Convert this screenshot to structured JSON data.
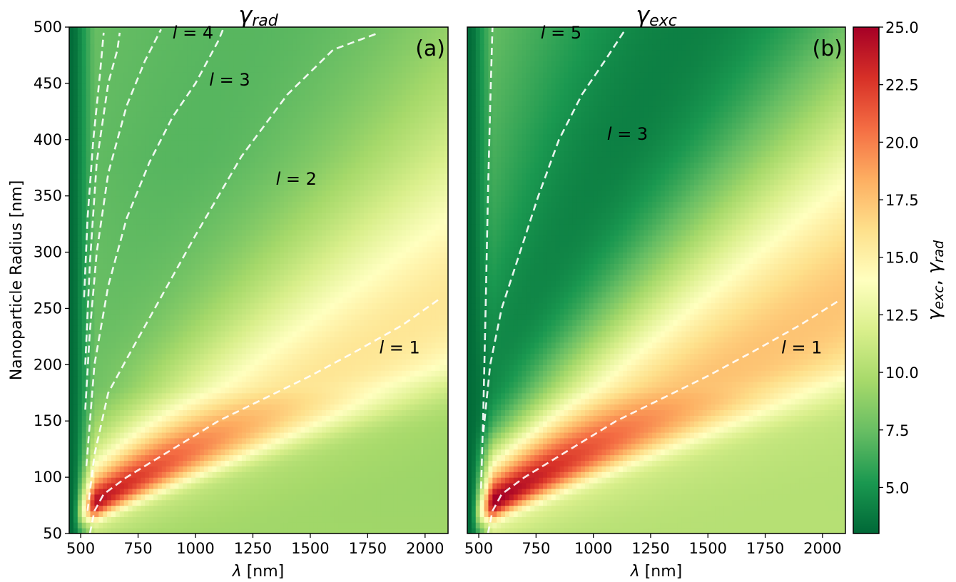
{
  "chart_data": [
    {
      "type": "heatmap",
      "panel_label": "(a)",
      "title": "γ",
      "title_sub": "rad",
      "xlabel_sym": "λ",
      "xlabel_unit": " [nm]",
      "ylabel": "Nanoparticle Radius [nm]",
      "xlim": [
        450,
        2100
      ],
      "ylim": [
        50,
        500
      ],
      "xticks": [
        500,
        750,
        1000,
        1250,
        1500,
        1750,
        2000
      ],
      "yticks": [
        50,
        100,
        150,
        200,
        250,
        300,
        350,
        400,
        450,
        500
      ],
      "quantity": "rad",
      "resonance_curves": [
        {
          "name": "l = 1",
          "label_at": [
            1800,
            210
          ],
          "points": [
            [
              540,
              50
            ],
            [
              560,
              70
            ],
            [
              600,
              85
            ],
            [
              700,
              100
            ],
            [
              900,
              125
            ],
            [
              1100,
              150
            ],
            [
              1300,
              170
            ],
            [
              1500,
              190
            ],
            [
              1700,
              212
            ],
            [
              1900,
              235
            ],
            [
              2060,
              258
            ]
          ]
        },
        {
          "name": "l = 2",
          "label_at": [
            1350,
            360
          ],
          "points": [
            [
              530,
              70
            ],
            [
              560,
              120
            ],
            [
              620,
              175
            ],
            [
              700,
              205
            ],
            [
              850,
              260
            ],
            [
              1000,
              315
            ],
            [
              1200,
              385
            ],
            [
              1400,
              440
            ],
            [
              1600,
              480
            ],
            [
              1800,
              495
            ]
          ]
        },
        {
          "name": "l = 3",
          "label_at": [
            1060,
            448
          ],
          "points": [
            [
              525,
              110
            ],
            [
              560,
              200
            ],
            [
              620,
              270
            ],
            [
              700,
              330
            ],
            [
              800,
              380
            ],
            [
              900,
              420
            ],
            [
              1000,
              450
            ],
            [
              1100,
              488
            ],
            [
              1120,
              498
            ]
          ]
        },
        {
          "name": "l = 4",
          "label_at": [
            900,
            490
          ],
          "points": [
            [
              520,
              160
            ],
            [
              540,
              230
            ],
            [
              570,
              300
            ],
            [
              620,
              370
            ],
            [
              700,
              430
            ],
            [
              780,
              470
            ],
            [
              850,
              498
            ]
          ]
        },
        {
          "name": "",
          "label_at": null,
          "points": [
            [
              520,
              200
            ],
            [
              540,
              290
            ],
            [
              570,
              380
            ],
            [
              620,
              450
            ],
            [
              660,
              480
            ],
            [
              670,
              495
            ]
          ]
        },
        {
          "name": "",
          "label_at": null,
          "points": [
            [
              515,
              260
            ],
            [
              530,
              330
            ],
            [
              555,
              400
            ],
            [
              585,
              460
            ],
            [
              600,
              495
            ]
          ]
        }
      ]
    },
    {
      "type": "heatmap",
      "panel_label": "(b)",
      "title": "γ",
      "title_sub": "exc",
      "xlabel_sym": "λ",
      "xlabel_unit": " [nm]",
      "ylabel": "",
      "xlim": [
        450,
        2100
      ],
      "ylim": [
        50,
        500
      ],
      "xticks": [
        500,
        750,
        1000,
        1250,
        1500,
        1750,
        2000
      ],
      "yticks": [],
      "quantity": "exc",
      "resonance_curves": [
        {
          "name": "l = 1",
          "label_at": [
            1820,
            210
          ],
          "points": [
            [
              540,
              50
            ],
            [
              560,
              70
            ],
            [
              600,
              85
            ],
            [
              700,
              100
            ],
            [
              900,
              125
            ],
            [
              1100,
              150
            ],
            [
              1300,
              170
            ],
            [
              1500,
              190
            ],
            [
              1700,
              212
            ],
            [
              1900,
              235
            ],
            [
              2080,
              258
            ]
          ]
        },
        {
          "name": "l = 3",
          "label_at": [
            1060,
            400
          ],
          "points": [
            [
              520,
              140
            ],
            [
              550,
              200
            ],
            [
              600,
              250
            ],
            [
              680,
              300
            ],
            [
              760,
              350
            ],
            [
              850,
              400
            ],
            [
              950,
              440
            ],
            [
              1050,
              470
            ],
            [
              1140,
              498
            ]
          ]
        },
        {
          "name": "l = 5",
          "label_at": [
            770,
            490
          ],
          "points": [
            [
              510,
              90
            ],
            [
              520,
              160
            ],
            [
              530,
              250
            ],
            [
              540,
              350
            ],
            [
              550,
              430
            ],
            [
              560,
              500
            ]
          ]
        }
      ]
    }
  ],
  "colorbar": {
    "label": "γ",
    "label_sub_1": "exc",
    "label_sep": ", ",
    "label_sub_2": "rad",
    "range": [
      3.0,
      25.0
    ],
    "ticks": [
      "5.0",
      "7.5",
      "10.0",
      "12.5",
      "15.0",
      "17.5",
      "20.0",
      "22.5",
      "25.0"
    ],
    "tick_values": [
      5.0,
      7.5,
      10.0,
      12.5,
      15.0,
      17.5,
      20.0,
      22.5,
      25.0
    ],
    "colormap": "RdYlGn_r"
  }
}
